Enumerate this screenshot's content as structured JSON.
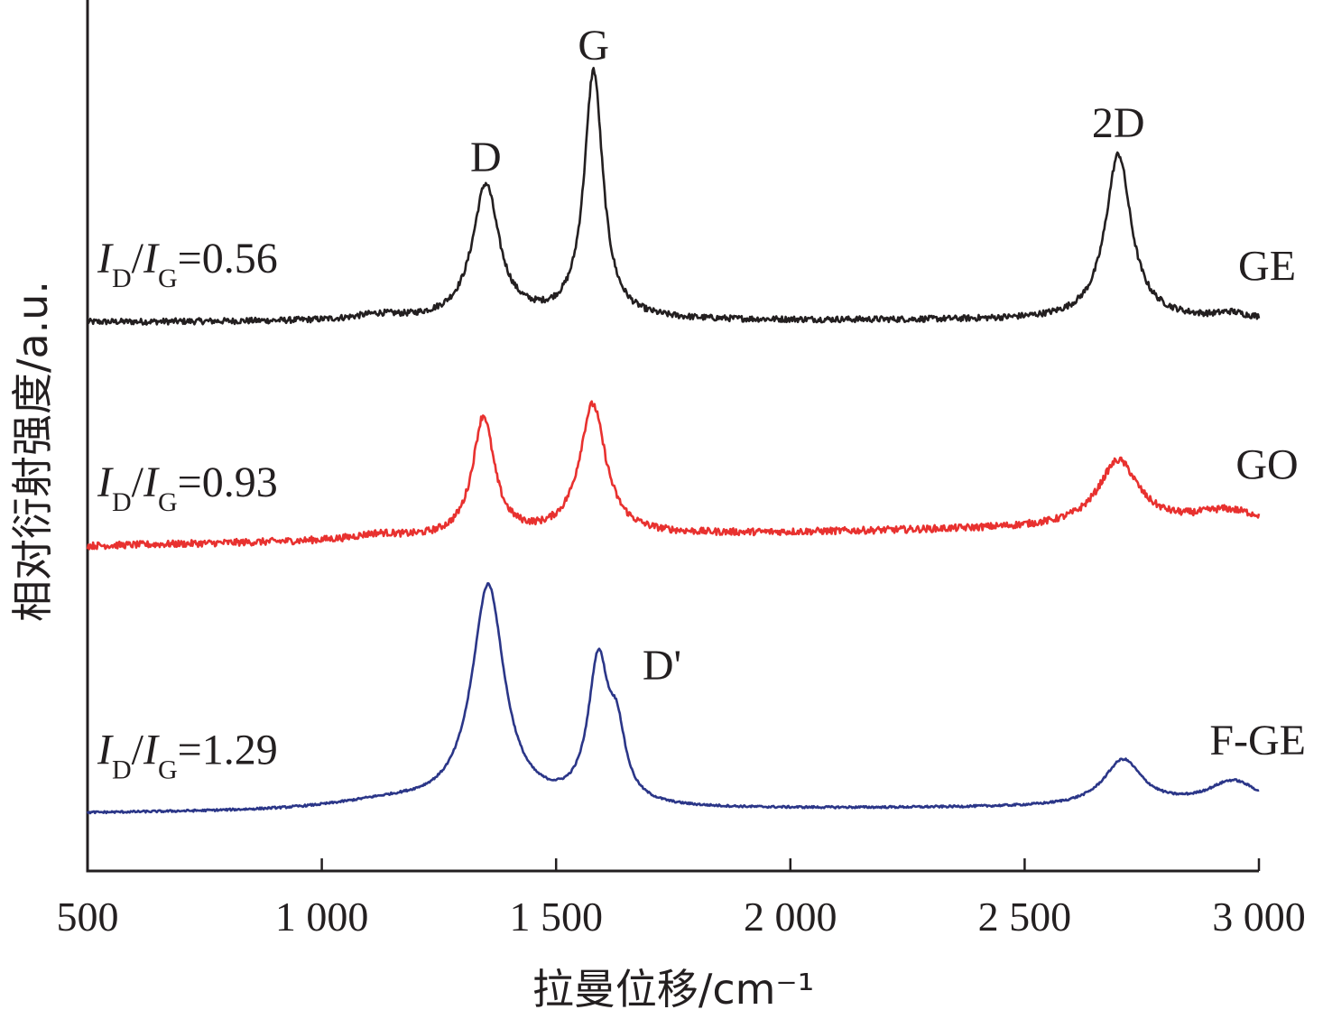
{
  "chart_data": {
    "type": "line",
    "xlabel": "拉曼位移/cm⁻¹",
    "ylabel": "相对衍射强度/a.u.",
    "xlim": [
      500,
      3000
    ],
    "xticks": [
      500,
      1000,
      1500,
      2000,
      2500,
      3000
    ],
    "xtick_labels": [
      "500",
      "1 000",
      "1 500",
      "2 000",
      "2 500",
      "3 000"
    ],
    "ylim": [
      0,
      100
    ],
    "grid": false,
    "peak_labels": [
      {
        "text": "D",
        "x": 1350
      },
      {
        "text": "G",
        "x": 1580
      },
      {
        "text": "2D",
        "x": 2700
      },
      {
        "text": "D'",
        "x": 1620
      }
    ],
    "series": [
      {
        "name": "GE",
        "color": "#231f20",
        "ratio_label": {
          "I": "I",
          "D": "D",
          "slash": "/",
          "G": "G",
          "value": "=0.56"
        },
        "label_x": 2950,
        "baseline": 63.0,
        "end_offset": 0.3,
        "noise": 0.35,
        "peaks": [
          {
            "x": 1350,
            "h": 15.5,
            "w": 34
          },
          {
            "x": 1580,
            "h": 28.5,
            "w": 24
          },
          {
            "x": 2700,
            "h": 19.0,
            "w": 33
          },
          {
            "x": 1120,
            "h": 0.6,
            "w": 60
          },
          {
            "x": 2940,
            "h": 0.6,
            "w": 35
          }
        ]
      },
      {
        "name": "GO",
        "color": "#e8312f",
        "ratio_label": {
          "I": "I",
          "D": "D",
          "slash": "/",
          "G": "G",
          "value": "=0.93"
        },
        "label_x": 2950,
        "baseline": 37.3,
        "end_offset": 2.5,
        "noise": 0.4,
        "peaks": [
          {
            "x": 1345,
            "h": 13.8,
            "w": 28
          },
          {
            "x": 1578,
            "h": 15.0,
            "w": 34
          },
          {
            "x": 2700,
            "h": 7.5,
            "w": 52
          },
          {
            "x": 2930,
            "h": 1.5,
            "w": 80
          },
          {
            "x": 1120,
            "h": 0.6,
            "w": 60
          }
        ]
      },
      {
        "name": "F-GE",
        "color": "#2b3688",
        "ratio_label": {
          "I": "I",
          "D": "D",
          "slash": "/",
          "G": "G",
          "value": "=1.29"
        },
        "label_x": 2930,
        "baseline": 6.6,
        "end_offset": 0.8,
        "noise": 0.12,
        "peaks": [
          {
            "x": 1355,
            "h": 25.5,
            "w": 42
          },
          {
            "x": 1590,
            "h": 16.0,
            "w": 26
          },
          {
            "x": 1630,
            "h": 7.0,
            "w": 22
          },
          {
            "x": 2710,
            "h": 5.3,
            "w": 50
          },
          {
            "x": 2945,
            "h": 2.8,
            "w": 65
          },
          {
            "x": 1140,
            "h": 1.0,
            "w": 150
          }
        ]
      }
    ]
  }
}
